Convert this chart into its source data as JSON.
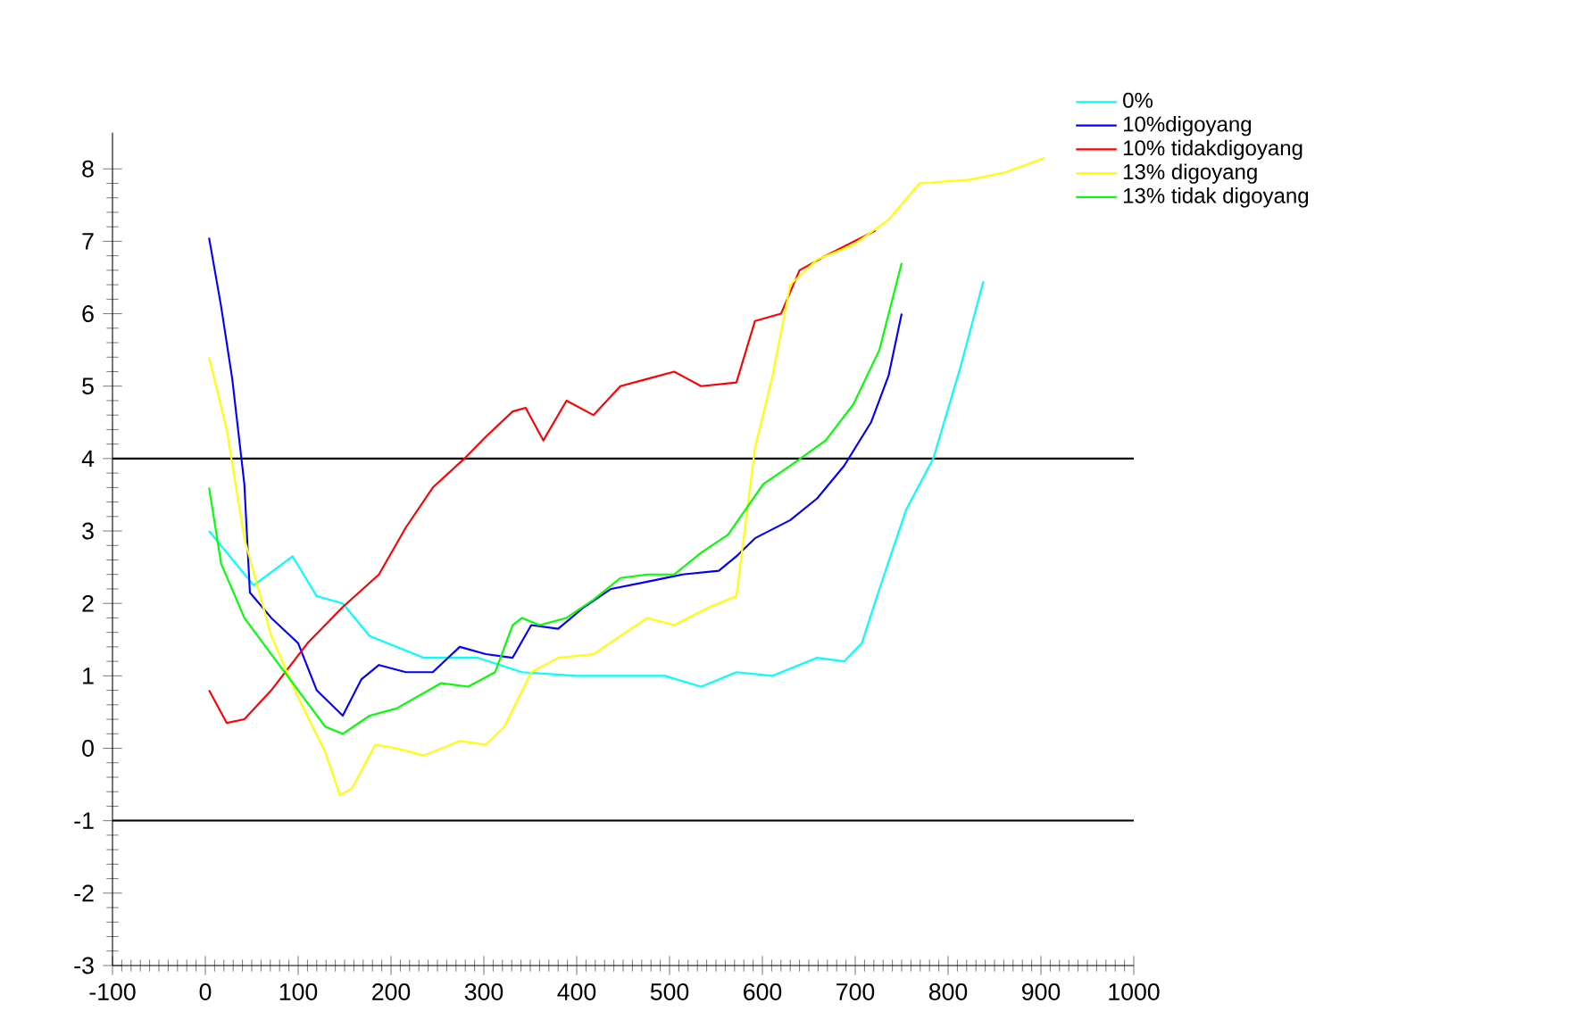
{
  "chart_data": {
    "type": "line",
    "xlim": [
      -100,
      1000
    ],
    "ylim": [
      -3,
      8.5
    ],
    "xticks": [
      -100,
      0,
      100,
      200,
      300,
      400,
      500,
      600,
      700,
      800,
      900,
      1000
    ],
    "yticks": [
      -3,
      -2,
      -1,
      0,
      1,
      2,
      3,
      4,
      5,
      6,
      7,
      8
    ],
    "grid": false,
    "legend": "top right",
    "ref_lines": [
      {
        "axis": "y",
        "value": 4,
        "color": "#000000"
      },
      {
        "axis": "y",
        "value": -1,
        "color": "#000000"
      }
    ],
    "series": [
      {
        "name": "0%",
        "color": "#00ffff",
        "x": [
          4,
          52,
          94,
          120,
          148,
          177,
          235,
          293,
          341,
          400,
          495,
          534,
          572,
          611,
          659,
          688,
          707,
          726,
          755,
          784,
          813,
          838
        ],
        "values": [
          3.0,
          2.25,
          2.65,
          2.1,
          2.0,
          1.55,
          1.25,
          1.25,
          1.05,
          1.0,
          1.0,
          0.85,
          1.05,
          1.0,
          1.25,
          1.2,
          1.45,
          2.2,
          3.3,
          4.0,
          5.25,
          6.45
        ]
      },
      {
        "name": "10%digoyang",
        "color": "#0000ff",
        "x": [
          4,
          17,
          29,
          42,
          48,
          71,
          100,
          120,
          148,
          168,
          187,
          216,
          245,
          274,
          302,
          331,
          351,
          380,
          408,
          437,
          476,
          514,
          553,
          572,
          592,
          630,
          659,
          688,
          717,
          736,
          750
        ],
        "values": [
          7.05,
          6.1,
          5.1,
          3.65,
          2.15,
          1.8,
          1.45,
          0.8,
          0.45,
          0.95,
          1.15,
          1.05,
          1.05,
          1.4,
          1.3,
          1.25,
          1.7,
          1.65,
          1.95,
          2.2,
          2.3,
          2.4,
          2.45,
          2.65,
          2.9,
          3.15,
          3.45,
          3.9,
          4.5,
          5.15,
          6.0
        ]
      },
      {
        "name": "10% tidakdigoyang",
        "color": "#ff0000",
        "x": [
          4,
          23,
          42,
          71,
          110,
          148,
          187,
          216,
          245,
          279,
          302,
          331,
          345,
          364,
          389,
          418,
          447,
          476,
          505,
          534,
          572,
          592,
          620,
          640,
          668,
          722
        ],
        "values": [
          0.8,
          0.35,
          0.4,
          0.8,
          1.45,
          1.95,
          2.4,
          3.05,
          3.6,
          4.0,
          4.3,
          4.65,
          4.7,
          4.25,
          4.8,
          4.6,
          5.0,
          5.1,
          5.2,
          5.0,
          5.05,
          5.9,
          6.0,
          6.6,
          6.8,
          7.15
        ]
      },
      {
        "name": "13% digoyang",
        "color": "#ffff00",
        "x": [
          4,
          23,
          42,
          71,
          100,
          129,
          145,
          158,
          183,
          206,
          235,
          274,
          302,
          322,
          351,
          380,
          418,
          447,
          476,
          505,
          543,
          572,
          592,
          611,
          630,
          659,
          698,
          736,
          769,
          823,
          861,
          904
        ],
        "values": [
          5.4,
          4.4,
          2.9,
          1.55,
          0.7,
          -0.05,
          -0.65,
          -0.55,
          0.05,
          0.0,
          -0.1,
          0.1,
          0.05,
          0.3,
          1.05,
          1.25,
          1.3,
          1.55,
          1.8,
          1.7,
          1.95,
          2.1,
          4.15,
          5.15,
          6.4,
          6.75,
          6.95,
          7.3,
          7.8,
          7.85,
          7.95,
          8.15
        ]
      },
      {
        "name": "13% tidak digoyang",
        "color": "#00ff00",
        "x": [
          4,
          17,
          42,
          71,
          100,
          129,
          148,
          177,
          206,
          254,
          283,
          312,
          331,
          341,
          360,
          389,
          418,
          447,
          476,
          505,
          534,
          563,
          582,
          601,
          630,
          668,
          698,
          726,
          750
        ],
        "values": [
          3.6,
          2.55,
          1.8,
          1.3,
          0.8,
          0.3,
          0.2,
          0.45,
          0.55,
          0.9,
          0.85,
          1.05,
          1.7,
          1.8,
          1.7,
          1.8,
          2.05,
          2.35,
          2.4,
          2.4,
          2.7,
          2.95,
          3.3,
          3.65,
          3.9,
          4.25,
          4.75,
          5.5,
          6.7
        ]
      }
    ]
  }
}
